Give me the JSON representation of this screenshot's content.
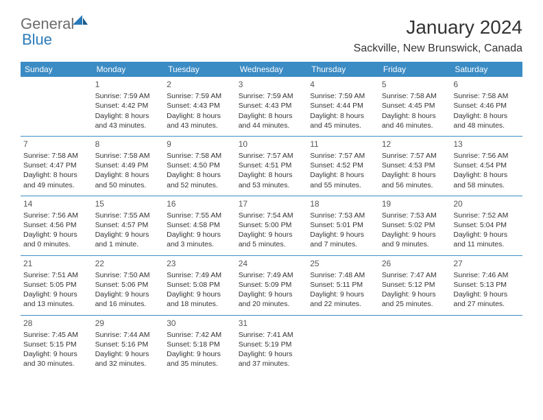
{
  "brand": {
    "word1": "General",
    "word2": "Blue"
  },
  "title": "January 2024",
  "location": "Sackville, New Brunswick, Canada",
  "weekdays": [
    "Sunday",
    "Monday",
    "Tuesday",
    "Wednesday",
    "Thursday",
    "Friday",
    "Saturday"
  ],
  "colors": {
    "header_bg": "#3b8bc4",
    "header_text": "#ffffff",
    "rule": "#3b8bc4",
    "logo_gray": "#6b6b6b",
    "logo_blue": "#2a7ab8"
  },
  "weeks": [
    [
      null,
      {
        "n": "1",
        "sr": "Sunrise: 7:59 AM",
        "ss": "Sunset: 4:42 PM",
        "d1": "Daylight: 8 hours",
        "d2": "and 43 minutes."
      },
      {
        "n": "2",
        "sr": "Sunrise: 7:59 AM",
        "ss": "Sunset: 4:43 PM",
        "d1": "Daylight: 8 hours",
        "d2": "and 43 minutes."
      },
      {
        "n": "3",
        "sr": "Sunrise: 7:59 AM",
        "ss": "Sunset: 4:43 PM",
        "d1": "Daylight: 8 hours",
        "d2": "and 44 minutes."
      },
      {
        "n": "4",
        "sr": "Sunrise: 7:59 AM",
        "ss": "Sunset: 4:44 PM",
        "d1": "Daylight: 8 hours",
        "d2": "and 45 minutes."
      },
      {
        "n": "5",
        "sr": "Sunrise: 7:58 AM",
        "ss": "Sunset: 4:45 PM",
        "d1": "Daylight: 8 hours",
        "d2": "and 46 minutes."
      },
      {
        "n": "6",
        "sr": "Sunrise: 7:58 AM",
        "ss": "Sunset: 4:46 PM",
        "d1": "Daylight: 8 hours",
        "d2": "and 48 minutes."
      }
    ],
    [
      {
        "n": "7",
        "sr": "Sunrise: 7:58 AM",
        "ss": "Sunset: 4:47 PM",
        "d1": "Daylight: 8 hours",
        "d2": "and 49 minutes."
      },
      {
        "n": "8",
        "sr": "Sunrise: 7:58 AM",
        "ss": "Sunset: 4:49 PM",
        "d1": "Daylight: 8 hours",
        "d2": "and 50 minutes."
      },
      {
        "n": "9",
        "sr": "Sunrise: 7:58 AM",
        "ss": "Sunset: 4:50 PM",
        "d1": "Daylight: 8 hours",
        "d2": "and 52 minutes."
      },
      {
        "n": "10",
        "sr": "Sunrise: 7:57 AM",
        "ss": "Sunset: 4:51 PM",
        "d1": "Daylight: 8 hours",
        "d2": "and 53 minutes."
      },
      {
        "n": "11",
        "sr": "Sunrise: 7:57 AM",
        "ss": "Sunset: 4:52 PM",
        "d1": "Daylight: 8 hours",
        "d2": "and 55 minutes."
      },
      {
        "n": "12",
        "sr": "Sunrise: 7:57 AM",
        "ss": "Sunset: 4:53 PM",
        "d1": "Daylight: 8 hours",
        "d2": "and 56 minutes."
      },
      {
        "n": "13",
        "sr": "Sunrise: 7:56 AM",
        "ss": "Sunset: 4:54 PM",
        "d1": "Daylight: 8 hours",
        "d2": "and 58 minutes."
      }
    ],
    [
      {
        "n": "14",
        "sr": "Sunrise: 7:56 AM",
        "ss": "Sunset: 4:56 PM",
        "d1": "Daylight: 9 hours",
        "d2": "and 0 minutes."
      },
      {
        "n": "15",
        "sr": "Sunrise: 7:55 AM",
        "ss": "Sunset: 4:57 PM",
        "d1": "Daylight: 9 hours",
        "d2": "and 1 minute."
      },
      {
        "n": "16",
        "sr": "Sunrise: 7:55 AM",
        "ss": "Sunset: 4:58 PM",
        "d1": "Daylight: 9 hours",
        "d2": "and 3 minutes."
      },
      {
        "n": "17",
        "sr": "Sunrise: 7:54 AM",
        "ss": "Sunset: 5:00 PM",
        "d1": "Daylight: 9 hours",
        "d2": "and 5 minutes."
      },
      {
        "n": "18",
        "sr": "Sunrise: 7:53 AM",
        "ss": "Sunset: 5:01 PM",
        "d1": "Daylight: 9 hours",
        "d2": "and 7 minutes."
      },
      {
        "n": "19",
        "sr": "Sunrise: 7:53 AM",
        "ss": "Sunset: 5:02 PM",
        "d1": "Daylight: 9 hours",
        "d2": "and 9 minutes."
      },
      {
        "n": "20",
        "sr": "Sunrise: 7:52 AM",
        "ss": "Sunset: 5:04 PM",
        "d1": "Daylight: 9 hours",
        "d2": "and 11 minutes."
      }
    ],
    [
      {
        "n": "21",
        "sr": "Sunrise: 7:51 AM",
        "ss": "Sunset: 5:05 PM",
        "d1": "Daylight: 9 hours",
        "d2": "and 13 minutes."
      },
      {
        "n": "22",
        "sr": "Sunrise: 7:50 AM",
        "ss": "Sunset: 5:06 PM",
        "d1": "Daylight: 9 hours",
        "d2": "and 16 minutes."
      },
      {
        "n": "23",
        "sr": "Sunrise: 7:49 AM",
        "ss": "Sunset: 5:08 PM",
        "d1": "Daylight: 9 hours",
        "d2": "and 18 minutes."
      },
      {
        "n": "24",
        "sr": "Sunrise: 7:49 AM",
        "ss": "Sunset: 5:09 PM",
        "d1": "Daylight: 9 hours",
        "d2": "and 20 minutes."
      },
      {
        "n": "25",
        "sr": "Sunrise: 7:48 AM",
        "ss": "Sunset: 5:11 PM",
        "d1": "Daylight: 9 hours",
        "d2": "and 22 minutes."
      },
      {
        "n": "26",
        "sr": "Sunrise: 7:47 AM",
        "ss": "Sunset: 5:12 PM",
        "d1": "Daylight: 9 hours",
        "d2": "and 25 minutes."
      },
      {
        "n": "27",
        "sr": "Sunrise: 7:46 AM",
        "ss": "Sunset: 5:13 PM",
        "d1": "Daylight: 9 hours",
        "d2": "and 27 minutes."
      }
    ],
    [
      {
        "n": "28",
        "sr": "Sunrise: 7:45 AM",
        "ss": "Sunset: 5:15 PM",
        "d1": "Daylight: 9 hours",
        "d2": "and 30 minutes."
      },
      {
        "n": "29",
        "sr": "Sunrise: 7:44 AM",
        "ss": "Sunset: 5:16 PM",
        "d1": "Daylight: 9 hours",
        "d2": "and 32 minutes."
      },
      {
        "n": "30",
        "sr": "Sunrise: 7:42 AM",
        "ss": "Sunset: 5:18 PM",
        "d1": "Daylight: 9 hours",
        "d2": "and 35 minutes."
      },
      {
        "n": "31",
        "sr": "Sunrise: 7:41 AM",
        "ss": "Sunset: 5:19 PM",
        "d1": "Daylight: 9 hours",
        "d2": "and 37 minutes."
      },
      null,
      null,
      null
    ]
  ]
}
